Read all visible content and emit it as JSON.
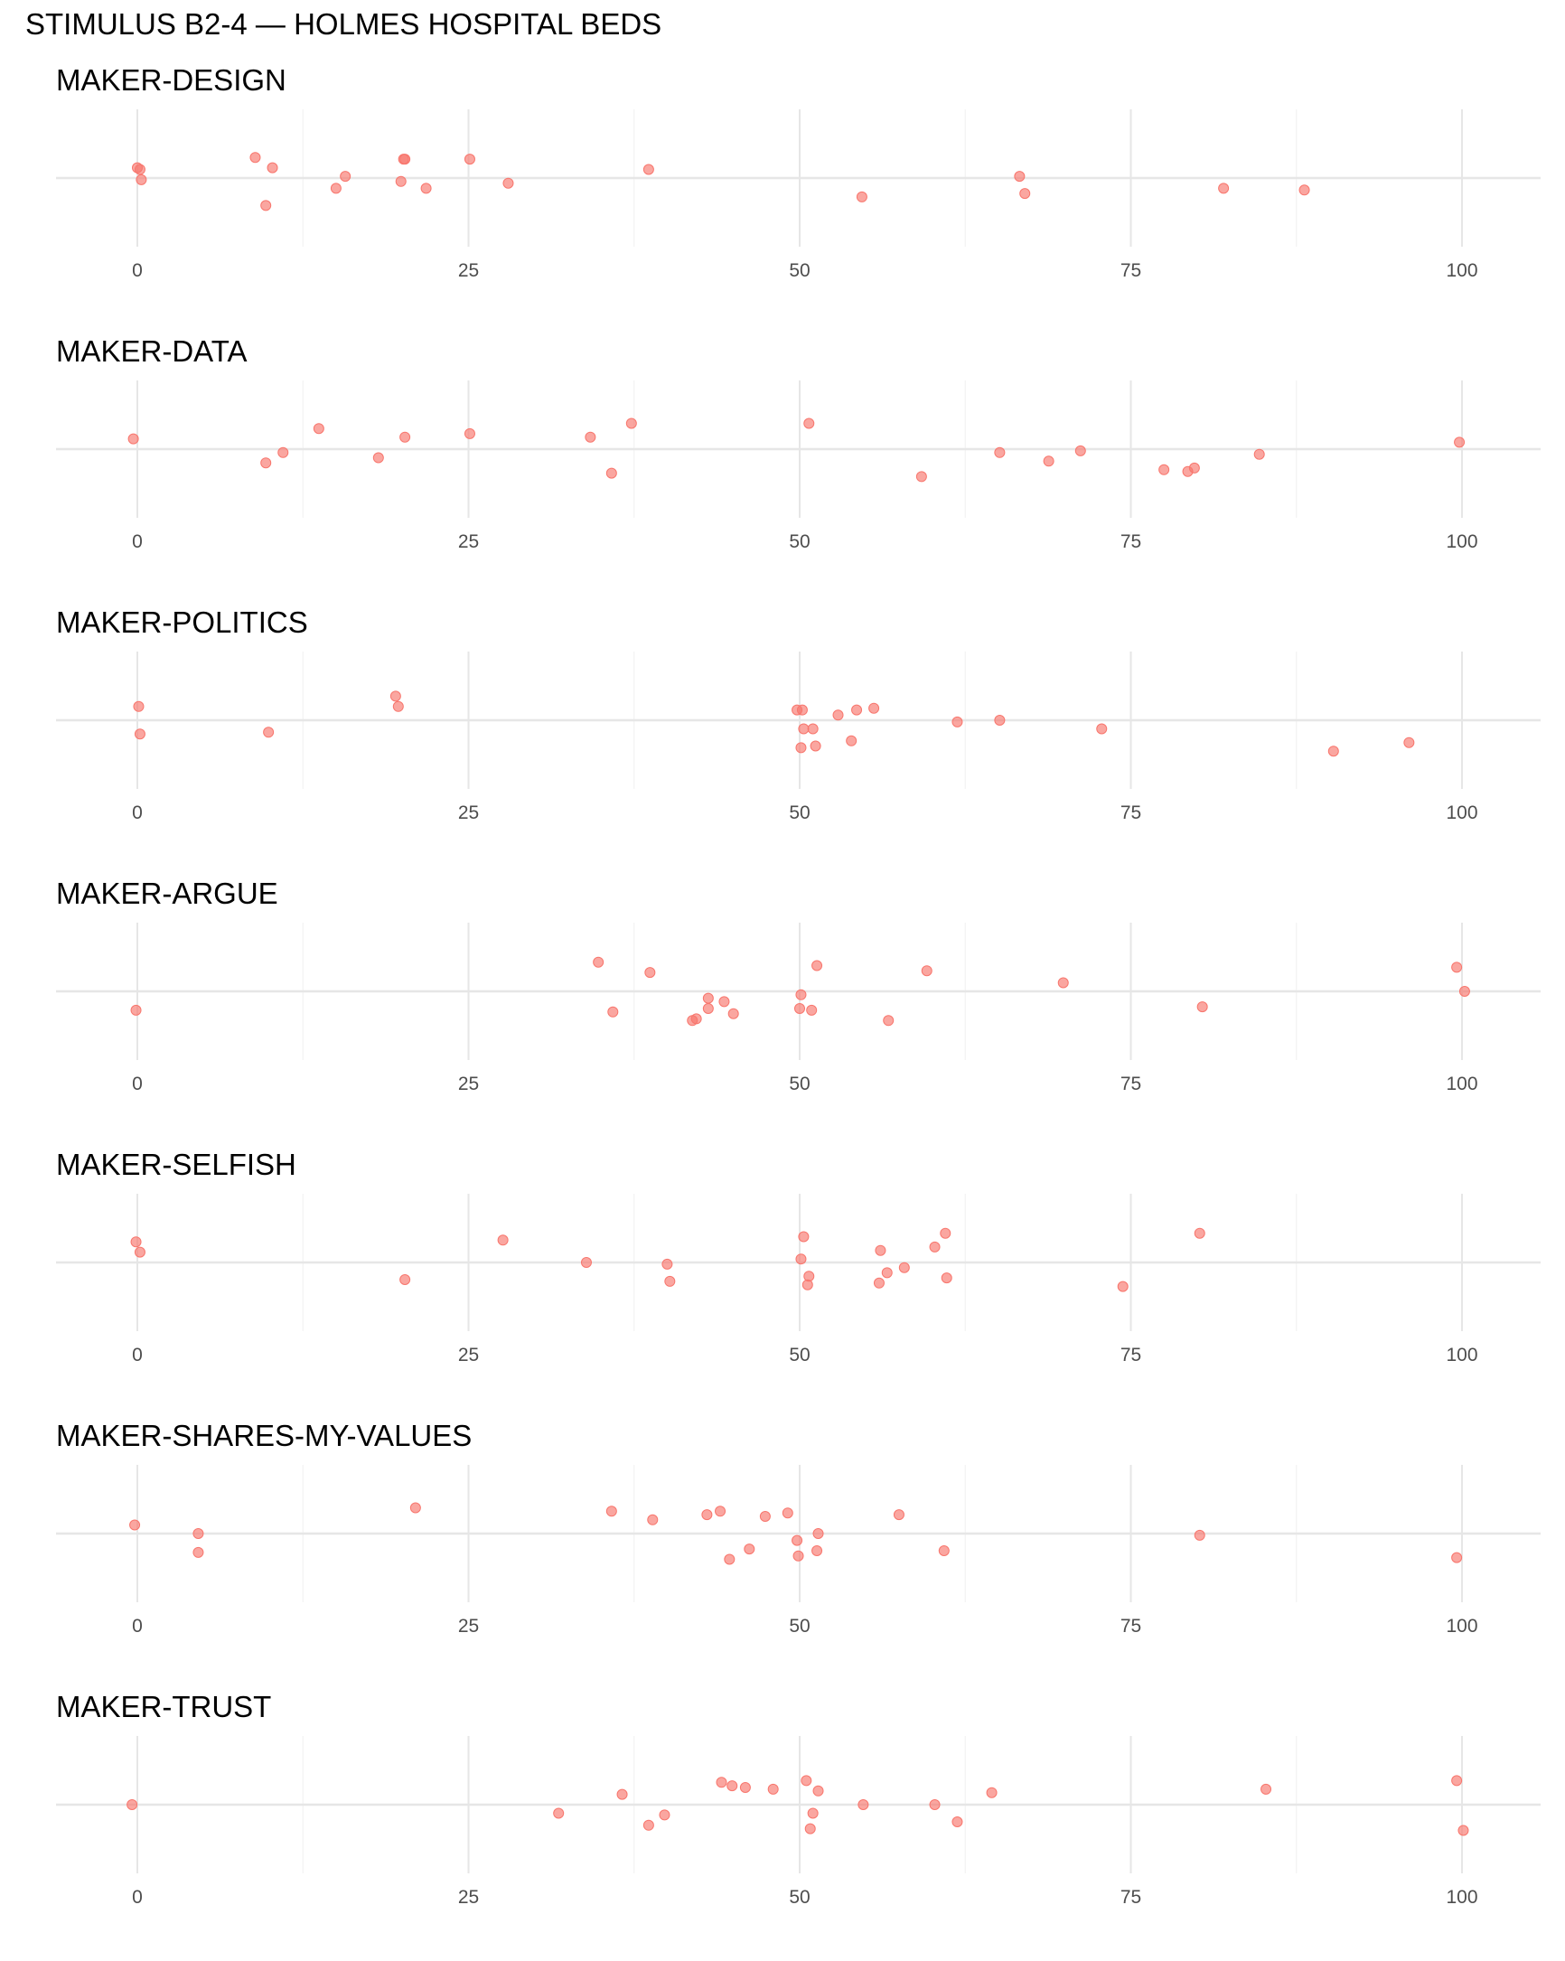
{
  "chart_data": {
    "type": "scatter",
    "title": "STIMULUS B2-4 — HOLMES HOSPITAL BEDS",
    "xlim": [
      -6,
      106
    ],
    "x_ticks": [
      0,
      25,
      50,
      75,
      100
    ],
    "x_tick_labels": [
      "0",
      "25",
      "50",
      "75",
      "100"
    ],
    "grid": true,
    "point_color": "#f8766d",
    "panels": [
      {
        "name": "MAKER-DESIGN",
        "points": [
          {
            "x": 0.0,
            "y": 0.06
          },
          {
            "x": 0.2,
            "y": 0.05
          },
          {
            "x": 0.3,
            "y": -0.01
          },
          {
            "x": 8.9,
            "y": 0.12
          },
          {
            "x": 9.7,
            "y": -0.16
          },
          {
            "x": 10.2,
            "y": 0.06
          },
          {
            "x": 15.0,
            "y": -0.06
          },
          {
            "x": 15.7,
            "y": 0.01
          },
          {
            "x": 19.9,
            "y": -0.02
          },
          {
            "x": 20.1,
            "y": 0.11
          },
          {
            "x": 20.2,
            "y": 0.11
          },
          {
            "x": 21.8,
            "y": -0.06
          },
          {
            "x": 25.1,
            "y": 0.11
          },
          {
            "x": 28.0,
            "y": -0.03
          },
          {
            "x": 38.6,
            "y": 0.05
          },
          {
            "x": 54.7,
            "y": -0.11
          },
          {
            "x": 66.6,
            "y": 0.01
          },
          {
            "x": 67.0,
            "y": -0.09
          },
          {
            "x": 82.0,
            "y": -0.06
          },
          {
            "x": 88.1,
            "y": -0.07
          }
        ]
      },
      {
        "name": "MAKER-DATA",
        "points": [
          {
            "x": -0.3,
            "y": 0.06
          },
          {
            "x": 9.7,
            "y": -0.08
          },
          {
            "x": 11.0,
            "y": -0.02
          },
          {
            "x": 13.7,
            "y": 0.12
          },
          {
            "x": 18.2,
            "y": -0.05
          },
          {
            "x": 20.2,
            "y": 0.07
          },
          {
            "x": 25.1,
            "y": 0.09
          },
          {
            "x": 34.2,
            "y": 0.07
          },
          {
            "x": 35.8,
            "y": -0.14
          },
          {
            "x": 37.3,
            "y": 0.15
          },
          {
            "x": 50.7,
            "y": 0.15
          },
          {
            "x": 59.2,
            "y": -0.16
          },
          {
            "x": 65.1,
            "y": -0.02
          },
          {
            "x": 68.8,
            "y": -0.07
          },
          {
            "x": 71.2,
            "y": -0.01
          },
          {
            "x": 77.5,
            "y": -0.12
          },
          {
            "x": 79.3,
            "y": -0.13
          },
          {
            "x": 79.8,
            "y": -0.11
          },
          {
            "x": 84.7,
            "y": -0.03
          },
          {
            "x": 99.8,
            "y": 0.04
          }
        ]
      },
      {
        "name": "MAKER-POLITICS",
        "points": [
          {
            "x": 0.1,
            "y": 0.08
          },
          {
            "x": 0.2,
            "y": -0.08
          },
          {
            "x": 9.9,
            "y": -0.07
          },
          {
            "x": 19.5,
            "y": 0.14
          },
          {
            "x": 19.7,
            "y": 0.08
          },
          {
            "x": 49.8,
            "y": 0.06
          },
          {
            "x": 50.1,
            "y": -0.16
          },
          {
            "x": 50.2,
            "y": 0.06
          },
          {
            "x": 50.3,
            "y": -0.05
          },
          {
            "x": 51.0,
            "y": -0.05
          },
          {
            "x": 51.2,
            "y": -0.15
          },
          {
            "x": 52.9,
            "y": 0.03
          },
          {
            "x": 53.9,
            "y": -0.12
          },
          {
            "x": 54.3,
            "y": 0.06
          },
          {
            "x": 55.6,
            "y": 0.07
          },
          {
            "x": 61.9,
            "y": -0.01
          },
          {
            "x": 65.1,
            "y": 0.0
          },
          {
            "x": 72.8,
            "y": -0.05
          },
          {
            "x": 90.3,
            "y": -0.18
          },
          {
            "x": 96.0,
            "y": -0.13
          }
        ]
      },
      {
        "name": "MAKER-ARGUE",
        "points": [
          {
            "x": -0.1,
            "y": -0.11
          },
          {
            "x": 34.8,
            "y": 0.17
          },
          {
            "x": 35.9,
            "y": -0.12
          },
          {
            "x": 38.7,
            "y": 0.11
          },
          {
            "x": 41.9,
            "y": -0.17
          },
          {
            "x": 42.2,
            "y": -0.16
          },
          {
            "x": 43.1,
            "y": -0.04
          },
          {
            "x": 43.1,
            "y": -0.1
          },
          {
            "x": 44.3,
            "y": -0.06
          },
          {
            "x": 45.0,
            "y": -0.13
          },
          {
            "x": 50.0,
            "y": -0.1
          },
          {
            "x": 50.1,
            "y": -0.02
          },
          {
            "x": 50.9,
            "y": -0.11
          },
          {
            "x": 51.3,
            "y": 0.15
          },
          {
            "x": 56.7,
            "y": -0.17
          },
          {
            "x": 59.6,
            "y": 0.12
          },
          {
            "x": 69.9,
            "y": 0.05
          },
          {
            "x": 80.4,
            "y": -0.09
          },
          {
            "x": 99.6,
            "y": 0.14
          },
          {
            "x": 100.2,
            "y": 0.0
          }
        ]
      },
      {
        "name": "MAKER-SELFISH",
        "points": [
          {
            "x": -0.1,
            "y": 0.12
          },
          {
            "x": 0.2,
            "y": 0.06
          },
          {
            "x": 20.2,
            "y": -0.1
          },
          {
            "x": 27.6,
            "y": 0.13
          },
          {
            "x": 33.9,
            "y": 0.0
          },
          {
            "x": 40.0,
            "y": -0.01
          },
          {
            "x": 40.2,
            "y": -0.11
          },
          {
            "x": 50.1,
            "y": 0.02
          },
          {
            "x": 50.3,
            "y": 0.15
          },
          {
            "x": 50.6,
            "y": -0.13
          },
          {
            "x": 50.7,
            "y": -0.08
          },
          {
            "x": 56.0,
            "y": -0.12
          },
          {
            "x": 56.1,
            "y": 0.07
          },
          {
            "x": 56.6,
            "y": -0.06
          },
          {
            "x": 57.9,
            "y": -0.03
          },
          {
            "x": 60.2,
            "y": 0.09
          },
          {
            "x": 61.0,
            "y": 0.17
          },
          {
            "x": 61.1,
            "y": -0.09
          },
          {
            "x": 74.4,
            "y": -0.14
          },
          {
            "x": 80.2,
            "y": 0.17
          }
        ]
      },
      {
        "name": "MAKER-SHARES-MY-VALUES",
        "points": [
          {
            "x": -0.2,
            "y": 0.05
          },
          {
            "x": 4.6,
            "y": 0.0
          },
          {
            "x": 4.6,
            "y": -0.11
          },
          {
            "x": 21.0,
            "y": 0.15
          },
          {
            "x": 35.8,
            "y": 0.13
          },
          {
            "x": 38.9,
            "y": 0.08
          },
          {
            "x": 43.0,
            "y": 0.11
          },
          {
            "x": 44.0,
            "y": 0.13
          },
          {
            "x": 44.7,
            "y": -0.15
          },
          {
            "x": 46.2,
            "y": -0.09
          },
          {
            "x": 47.4,
            "y": 0.1
          },
          {
            "x": 49.1,
            "y": 0.12
          },
          {
            "x": 49.8,
            "y": -0.04
          },
          {
            "x": 49.9,
            "y": -0.13
          },
          {
            "x": 51.3,
            "y": -0.1
          },
          {
            "x": 51.4,
            "y": 0.0
          },
          {
            "x": 57.5,
            "y": 0.11
          },
          {
            "x": 60.9,
            "y": -0.1
          },
          {
            "x": 80.2,
            "y": -0.01
          },
          {
            "x": 99.6,
            "y": -0.14
          }
        ]
      },
      {
        "name": "MAKER-TRUST",
        "points": [
          {
            "x": -0.4,
            "y": 0.0
          },
          {
            "x": 31.8,
            "y": -0.05
          },
          {
            "x": 36.6,
            "y": 0.06
          },
          {
            "x": 38.6,
            "y": -0.12
          },
          {
            "x": 39.8,
            "y": -0.06
          },
          {
            "x": 44.1,
            "y": 0.13
          },
          {
            "x": 44.9,
            "y": 0.11
          },
          {
            "x": 45.9,
            "y": 0.1
          },
          {
            "x": 48.0,
            "y": 0.09
          },
          {
            "x": 50.5,
            "y": 0.14
          },
          {
            "x": 50.8,
            "y": -0.14
          },
          {
            "x": 51.0,
            "y": -0.05
          },
          {
            "x": 51.4,
            "y": 0.08
          },
          {
            "x": 54.8,
            "y": 0.0
          },
          {
            "x": 60.2,
            "y": 0.0
          },
          {
            "x": 61.9,
            "y": -0.1
          },
          {
            "x": 64.5,
            "y": 0.07
          },
          {
            "x": 85.2,
            "y": 0.09
          },
          {
            "x": 99.6,
            "y": 0.14
          },
          {
            "x": 100.1,
            "y": -0.15
          }
        ]
      }
    ]
  }
}
